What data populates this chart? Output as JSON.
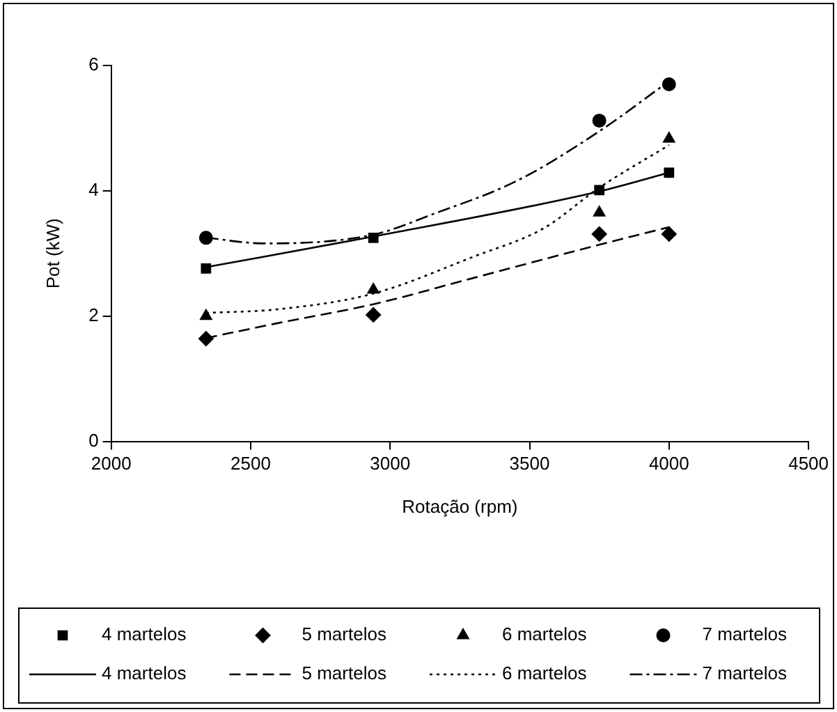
{
  "chart_data": {
    "type": "scatter",
    "xlabel": "Rotação (rpm)",
    "ylabel": "Pot (kW)",
    "xlim": [
      2000,
      4500
    ],
    "xticks": [
      2000,
      2500,
      3000,
      3500,
      4000,
      4500
    ],
    "ylim": [
      0,
      6
    ],
    "yticks": [
      0,
      2,
      4,
      6
    ],
    "grid": false,
    "legend": "bottom",
    "series": [
      {
        "name": "4 martelos",
        "type": "scatter",
        "marker": "square",
        "color": "#000000",
        "x": [
          2340,
          2940,
          3750,
          4000
        ],
        "values": [
          2.76,
          3.25,
          4.01,
          4.29
        ]
      },
      {
        "name": "5 martelos",
        "type": "scatter",
        "marker": "diamond",
        "color": "#000000",
        "x": [
          2340,
          2940,
          3750,
          4000
        ],
        "values": [
          1.64,
          2.02,
          3.31,
          3.31
        ]
      },
      {
        "name": "6 martelos",
        "type": "scatter",
        "marker": "triangle",
        "color": "#000000",
        "x": [
          2340,
          2940,
          3750,
          4000
        ],
        "values": [
          2.0,
          2.42,
          3.65,
          4.83
        ]
      },
      {
        "name": "7 martelos",
        "type": "scatter",
        "marker": "circle",
        "color": "#000000",
        "x": [
          2340,
          2940,
          3750,
          4000
        ],
        "values": [
          3.25,
          null,
          5.12,
          5.7
        ]
      },
      {
        "name": "4 martelos",
        "type": "line",
        "marker": "none",
        "line_style": "solid",
        "color": "#000000",
        "x": [
          2340,
          2940,
          3750,
          4000
        ],
        "values": [
          2.78,
          3.27,
          3.99,
          4.29
        ]
      },
      {
        "name": "5 martelos",
        "type": "line",
        "marker": "none",
        "line_style": "dashed",
        "color": "#000000",
        "x": [
          2340,
          2600,
          2940,
          3300,
          3750,
          4000
        ],
        "values": [
          1.65,
          1.89,
          2.19,
          2.61,
          3.14,
          3.42
        ]
      },
      {
        "name": "6 martelos",
        "type": "line",
        "marker": "none",
        "line_style": "dotted",
        "color": "#000000",
        "x": [
          2340,
          2600,
          2940,
          3300,
          3550,
          3750,
          4000
        ],
        "values": [
          2.05,
          2.11,
          2.36,
          2.95,
          3.4,
          4.05,
          4.73
        ]
      },
      {
        "name": "7 martelos",
        "type": "line",
        "marker": "none",
        "line_style": "dashdot",
        "color": "#000000",
        "x": [
          2340,
          2550,
          2940,
          3155,
          3455,
          3750,
          4000
        ],
        "values": [
          3.25,
          3.16,
          3.3,
          3.63,
          4.16,
          4.95,
          5.75
        ]
      }
    ]
  }
}
